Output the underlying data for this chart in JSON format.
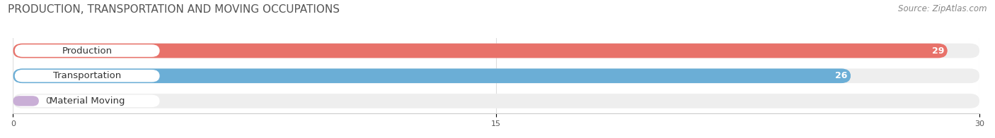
{
  "title": "PRODUCTION, TRANSPORTATION AND MOVING OCCUPATIONS",
  "source": "Source: ZipAtlas.com",
  "categories": [
    "Production",
    "Transportation",
    "Material Moving"
  ],
  "values": [
    29,
    26,
    0
  ],
  "bar_colors": [
    "#e8726a",
    "#6baed6",
    "#c9aed6"
  ],
  "bar_bg_color": "#eeeeee",
  "label_bg_color": "#ffffff",
  "xlim": [
    0,
    30
  ],
  "xticks": [
    0,
    15,
    30
  ],
  "label_fontsize": 9.5,
  "value_fontsize": 9,
  "title_fontsize": 11,
  "source_fontsize": 8.5,
  "bar_height": 0.58,
  "figsize": [
    14.06,
    1.96
  ],
  "dpi": 100
}
